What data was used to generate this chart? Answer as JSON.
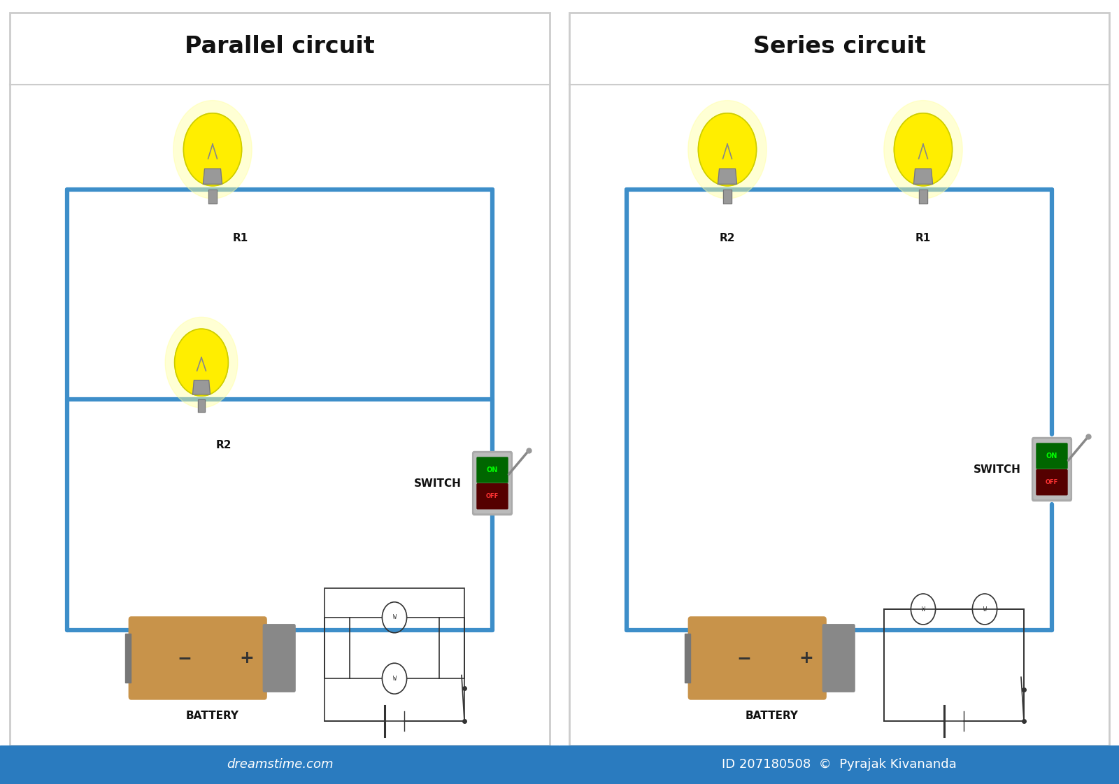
{
  "bg_color": "#ffffff",
  "wire_color": "#3d8ec9",
  "wire_lw": 4.5,
  "border_color": "#cccccc",
  "title_parallel": "Parallel circuit",
  "title_series": "Series circuit",
  "title_fontsize": 24,
  "title_fontweight": "bold",
  "label_fontsize": 11,
  "label_fontweight": "bold",
  "battery_color": "#c8934a",
  "battery_cap_color": "#888888",
  "bulb_yellow": "#ffee00",
  "bulb_yellow_light": "#ffffa0",
  "bulb_base_color": "#999999",
  "bulb_base_dark": "#777777",
  "switch_body_color": "#aaaaaa",
  "switch_on_color": "#00aa00",
  "switch_off_color": "#cc0000",
  "footer_color": "#2a7bbf",
  "footer_text_left": "dreamstime.com",
  "footer_text_right": "ID 207180508  ©  Pyrajak Kivananda",
  "footer_fontsize": 13,
  "schematic_color": "#333333"
}
